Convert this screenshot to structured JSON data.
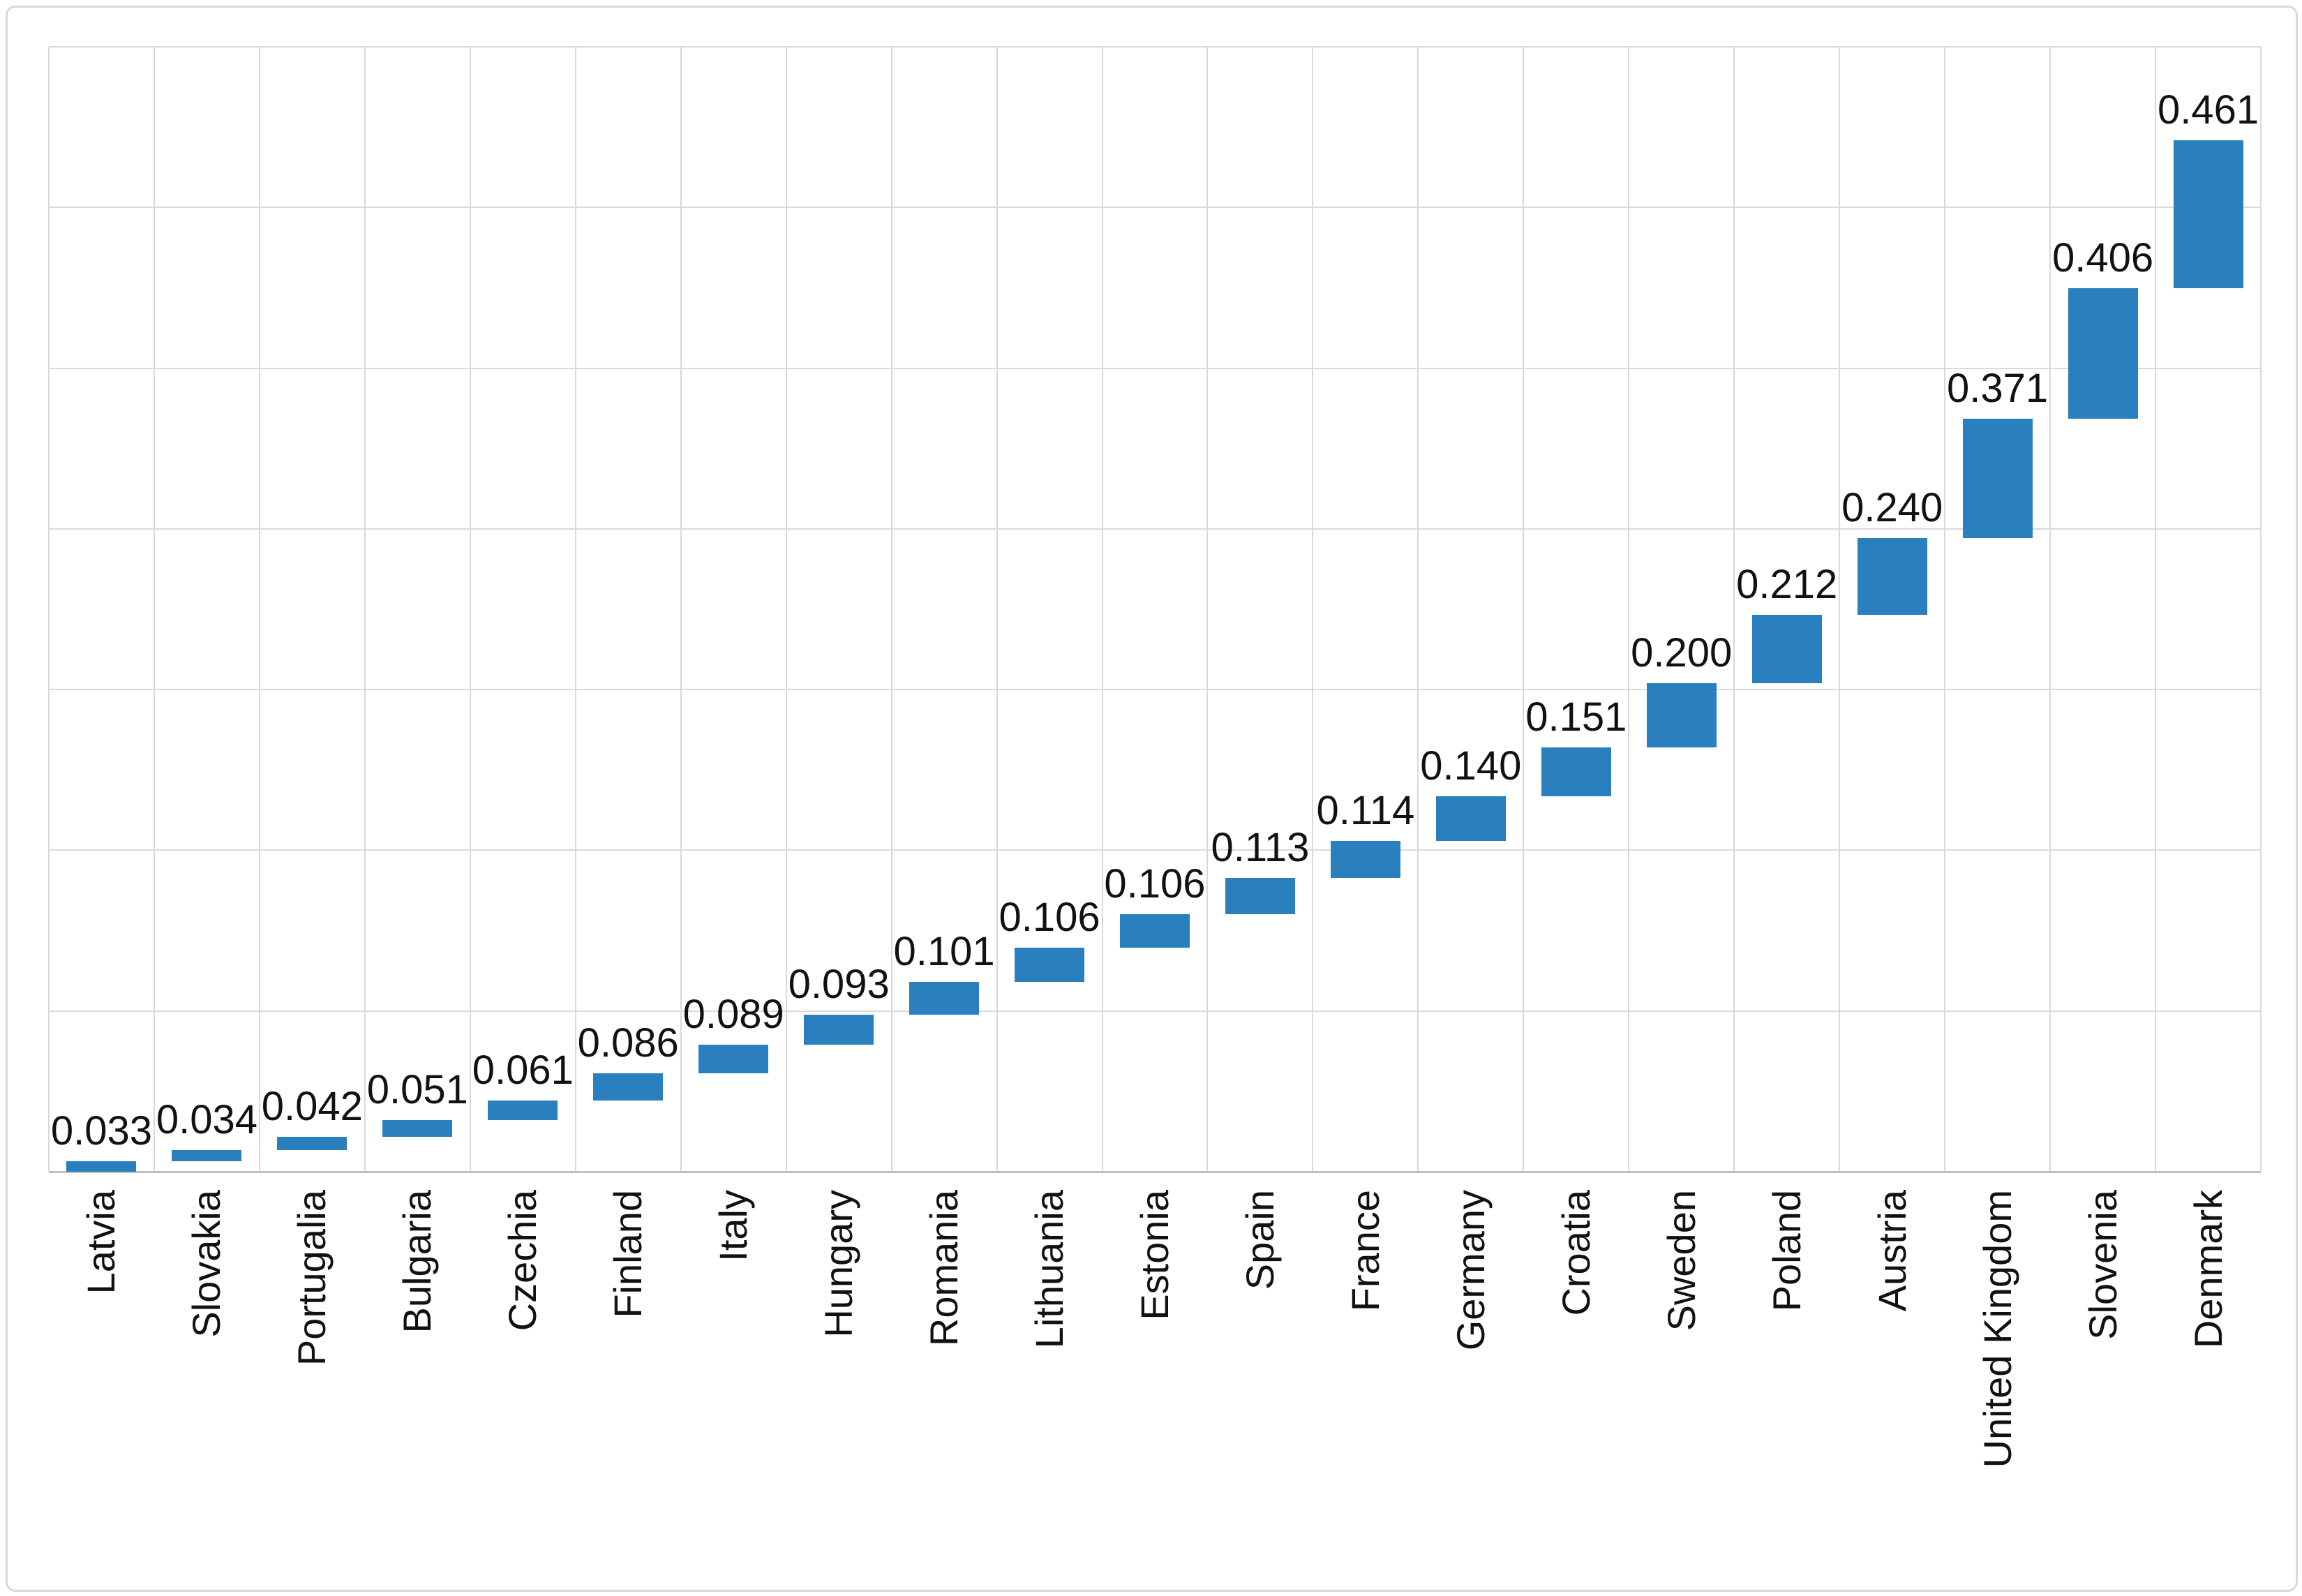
{
  "chart_data": {
    "type": "bar",
    "subtype": "cumulative-floating-waterfall",
    "title": "",
    "xlabel": "",
    "ylabel": "",
    "categories": [
      "Latvia",
      "Slovakia",
      "Portugalia",
      "Bulgaria",
      "Czechia",
      "Finland",
      "Italy",
      "Hungary",
      "Romania",
      "Lithuania",
      "Estonia",
      "Spain",
      "France",
      "Germany",
      "Croatia",
      "Sweden",
      "Poland",
      "Austria",
      "United Kingdom",
      "Slovenia",
      "Denmark"
    ],
    "values": [
      0.033,
      0.034,
      0.042,
      0.051,
      0.061,
      0.086,
      0.089,
      0.093,
      0.101,
      0.106,
      0.106,
      0.113,
      0.114,
      0.14,
      0.151,
      0.2,
      0.212,
      0.24,
      0.371,
      0.406,
      0.461
    ],
    "value_labels": [
      "0.033",
      "0.034",
      "0.042",
      "0.051",
      "0.061",
      "0.086",
      "0.089",
      "0.093",
      "0.101",
      "0.106",
      "0.106",
      "0.113",
      "0.114",
      "0.140",
      "0.151",
      "0.200",
      "0.212",
      "0.240",
      "0.371",
      "0.406",
      "0.461"
    ],
    "cumulative": true,
    "cumulative_total": 3.21,
    "ylim": [
      0,
      3.5
    ],
    "gridline_step": 0.5,
    "grid": true,
    "legend": false,
    "y_axis_labels_visible": false,
    "x_labels_rotation_degrees": 90,
    "colors": {
      "bar": "#2A7FBE",
      "gridline": "#D9D9D9",
      "axis_line": "#BFBFBF",
      "label_text": "#111111",
      "border": "#D9D9D9",
      "background": "#FFFFFF"
    }
  }
}
